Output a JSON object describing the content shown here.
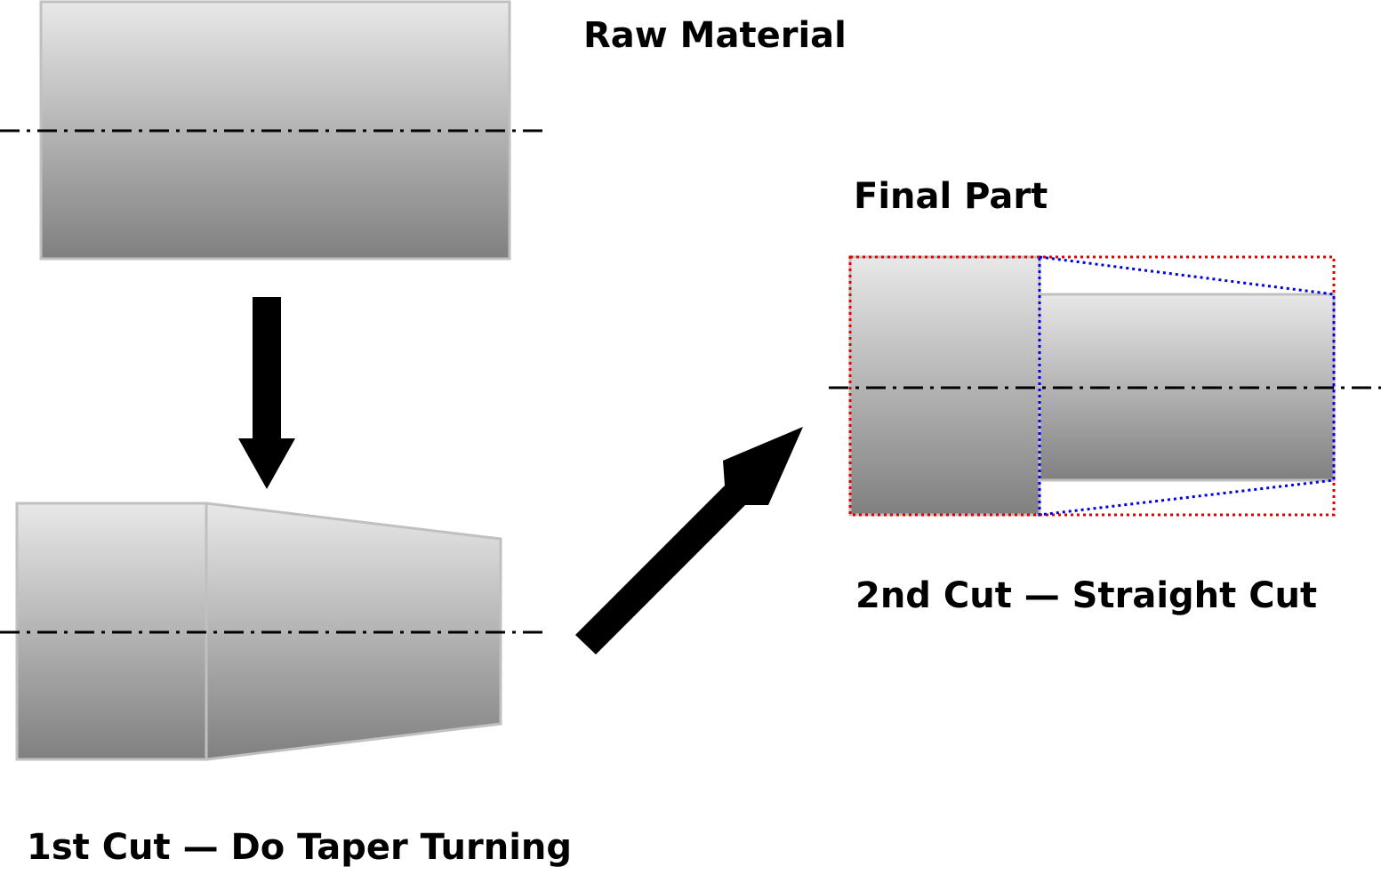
{
  "labels": {
    "raw": "Raw Material",
    "final": "Final Part",
    "first_cut": "1st Cut — Do Taper Turning",
    "second_cut": "2nd Cut — Straight Cut"
  }
}
